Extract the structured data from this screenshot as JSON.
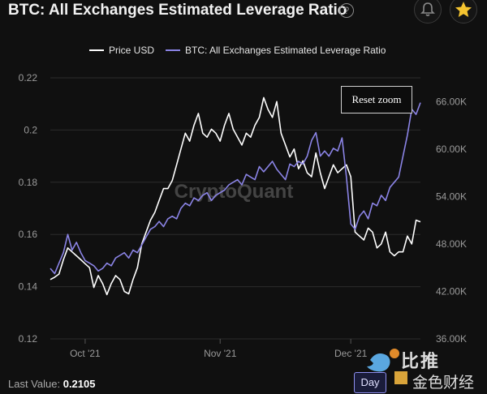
{
  "title": "BTC: All Exchanges Estimated Leverage Ratio",
  "help_icon": "question-circle-icon",
  "bell_icon": "bell-icon",
  "star_icon": "star-icon",
  "colors": {
    "background": "#101010",
    "price": "#ffffff",
    "leverage": "#8b84e6",
    "star": "#f4c430",
    "grid": "#2c2c2c",
    "axis_text": "#9a9a9a"
  },
  "reset_zoom_label": "Reset zoom",
  "watermark": "CryptoQuant",
  "last_value_label": "Last Value:",
  "last_value": "0.2105",
  "day_button_label": "Day",
  "logo_text_1": "比推",
  "logo_text_2": "金色财经",
  "chart_data": {
    "type": "line",
    "title": "BTC: All Exchanges Estimated Leverage Ratio",
    "legend_position": "top-center",
    "grid": true,
    "x_ticks": [
      "Oct '21",
      "Nov '21",
      "Dec '21"
    ],
    "x_tick_days": [
      8,
      39,
      69
    ],
    "x_range_days": [
      0,
      85
    ],
    "y_left": {
      "range": [
        0.12,
        0.22
      ],
      "ticks": [
        "0.12",
        "0.14",
        "0.16",
        "0.18",
        "0.2",
        "0.22"
      ],
      "values": [
        0.12,
        0.14,
        0.16,
        0.18,
        0.2,
        0.22
      ]
    },
    "y_right": {
      "range": [
        36000,
        69000
      ],
      "ticks": [
        "36.00K",
        "42.00K",
        "48.00K",
        "54.00K",
        "60.00K",
        "66.00K"
      ],
      "values": [
        36000,
        42000,
        48000,
        54000,
        60000,
        66000
      ]
    },
    "series": [
      {
        "name": "Price USD",
        "axis": "right",
        "x": [
          0,
          1,
          2,
          3,
          4,
          5,
          6,
          7,
          8,
          9,
          10,
          11,
          12,
          13,
          14,
          15,
          16,
          17,
          18,
          19,
          20,
          21,
          22,
          23,
          24,
          25,
          26,
          27,
          28,
          29,
          30,
          31,
          32,
          33,
          34,
          35,
          36,
          37,
          38,
          39,
          40,
          41,
          42,
          43,
          44,
          45,
          46,
          47,
          48,
          49,
          50,
          51,
          52,
          53,
          54,
          55,
          56,
          57,
          58,
          59,
          60,
          61,
          62,
          63,
          64,
          65,
          66,
          67,
          68,
          69,
          70,
          71,
          72,
          73,
          74,
          75,
          76,
          77,
          78,
          79,
          80,
          81,
          82,
          83,
          84,
          85
        ],
        "y": [
          43500,
          43800,
          44200,
          46000,
          47500,
          47000,
          46500,
          46000,
          45500,
          45000,
          42500,
          44000,
          43000,
          41600,
          43000,
          44000,
          43500,
          42000,
          41700,
          43500,
          45000,
          48000,
          49500,
          51000,
          52000,
          53500,
          55000,
          55000,
          56000,
          58000,
          60000,
          62000,
          61000,
          63000,
          64500,
          62000,
          61500,
          62500,
          62000,
          61000,
          63000,
          64500,
          62500,
          61500,
          60500,
          62000,
          61500,
          63000,
          64000,
          66500,
          65000,
          64000,
          66000,
          62000,
          60500,
          59000,
          60000,
          57500,
          58500,
          57000,
          56500,
          59500,
          57000,
          55000,
          56500,
          58000,
          57000,
          57500,
          58000,
          56500,
          49500,
          49000,
          48500,
          50000,
          49500,
          47500,
          48000,
          49500,
          47000,
          46500,
          47000,
          47000,
          49000,
          48000,
          51000,
          50800
        ]
      },
      {
        "name": "BTC: All Exchanges Estimated Leverage Ratio",
        "axis": "left",
        "x": [
          0,
          1,
          2,
          3,
          4,
          5,
          6,
          7,
          8,
          9,
          10,
          11,
          12,
          13,
          14,
          15,
          16,
          17,
          18,
          19,
          20,
          21,
          22,
          23,
          24,
          25,
          26,
          27,
          28,
          29,
          30,
          31,
          32,
          33,
          34,
          35,
          36,
          37,
          38,
          39,
          40,
          41,
          42,
          43,
          44,
          45,
          46,
          47,
          48,
          49,
          50,
          51,
          52,
          53,
          54,
          55,
          56,
          57,
          58,
          59,
          60,
          61,
          62,
          63,
          64,
          65,
          66,
          67,
          68,
          69,
          70,
          71,
          72,
          73,
          74,
          75,
          76,
          77,
          78,
          79,
          80,
          81,
          82,
          83,
          84,
          85
        ],
        "y": [
          0.147,
          0.145,
          0.149,
          0.153,
          0.16,
          0.154,
          0.157,
          0.153,
          0.15,
          0.149,
          0.148,
          0.146,
          0.147,
          0.149,
          0.148,
          0.151,
          0.152,
          0.153,
          0.151,
          0.154,
          0.153,
          0.156,
          0.159,
          0.162,
          0.163,
          0.165,
          0.163,
          0.166,
          0.167,
          0.166,
          0.17,
          0.172,
          0.171,
          0.174,
          0.173,
          0.175,
          0.176,
          0.173,
          0.175,
          0.176,
          0.177,
          0.179,
          0.18,
          0.181,
          0.179,
          0.183,
          0.182,
          0.181,
          0.186,
          0.184,
          0.186,
          0.188,
          0.185,
          0.183,
          0.181,
          0.187,
          0.186,
          0.188,
          0.187,
          0.19,
          0.196,
          0.199,
          0.19,
          0.192,
          0.19,
          0.193,
          0.192,
          0.197,
          0.182,
          0.164,
          0.162,
          0.167,
          0.169,
          0.166,
          0.172,
          0.171,
          0.175,
          0.173,
          0.178,
          0.18,
          0.182,
          0.19,
          0.198,
          0.208,
          0.206,
          0.2105
        ]
      }
    ]
  }
}
